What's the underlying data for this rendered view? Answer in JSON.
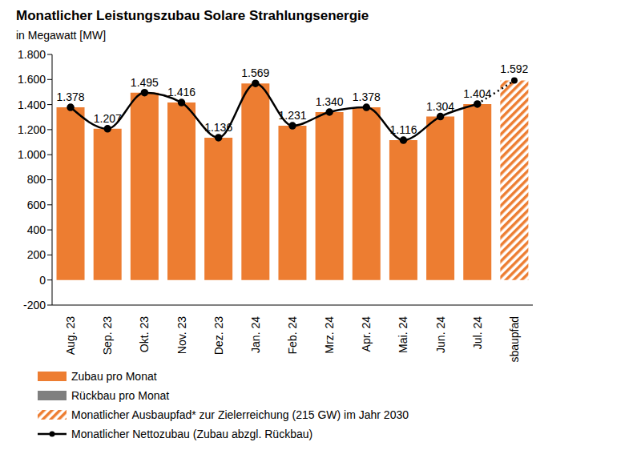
{
  "chart_data": {
    "type": "bar",
    "title": "Monatlicher Leistungszubau Solare Strahlungsenergie",
    "subtitle": "in Megawatt [MW]",
    "categories": [
      "Aug. 23",
      "Sep. 23",
      "Okt. 23",
      "Nov. 23",
      "Dez. 23",
      "Jan. 24",
      "Feb. 24",
      "Mrz. 24",
      "Apr. 24",
      "Mai. 24",
      "Jun. 24",
      "Jul. 24",
      "Ausbaupfad"
    ],
    "series": [
      {
        "name": "Zubau pro Monat",
        "type": "bar",
        "color": "#ed7d31",
        "values": [
          1378,
          1207,
          1495,
          1416,
          1136,
          1569,
          1231,
          1340,
          1378,
          1116,
          1304,
          1404,
          null
        ]
      },
      {
        "name": "Rückbau pro Monat",
        "type": "bar",
        "color": "#7f7f7f",
        "values": [
          0,
          0,
          0,
          0,
          0,
          0,
          0,
          0,
          0,
          0,
          0,
          0,
          null
        ]
      },
      {
        "name": "Monatlicher Ausbaupfad* zur Zielerreichung (215 GW) im Jahr 2030",
        "type": "bar",
        "color": "#ed7d31",
        "line_style": "hatched",
        "data_labels": true,
        "values": [
          null,
          null,
          null,
          null,
          null,
          null,
          null,
          null,
          null,
          null,
          null,
          null,
          1592
        ],
        "value_labels": [
          null,
          null,
          null,
          null,
          null,
          null,
          null,
          null,
          null,
          null,
          null,
          null,
          "1.592"
        ]
      },
      {
        "name": "Monatlicher Nettozubau (Zubau abzgl. Rückbau)",
        "type": "line",
        "color": "#000000",
        "marker": "circle",
        "line_style": "solid",
        "data_labels": true,
        "values": [
          1378,
          1207,
          1495,
          1416,
          1136,
          1569,
          1231,
          1340,
          1378,
          1116,
          1304,
          1404,
          null
        ],
        "value_labels": [
          "1.378",
          "1.207",
          "1.495",
          "1.416",
          "1.136",
          "1.569",
          "1.231",
          "1.340",
          "1.378",
          "1.116",
          "1.304",
          "1.404",
          null
        ]
      }
    ],
    "ylim": [
      -200,
      1800
    ],
    "yticks": [
      -200,
      0,
      200,
      400,
      600,
      800,
      {
        "value": 1000,
        "label": "1.000"
      },
      {
        "value": 1200,
        "label": "1.200"
      },
      {
        "value": 1400,
        "label": "1.400"
      },
      {
        "value": 1600,
        "label": "1.600"
      },
      {
        "value": 1800,
        "label": "1.800"
      }
    ],
    "grid": false,
    "legend": "bottom"
  }
}
